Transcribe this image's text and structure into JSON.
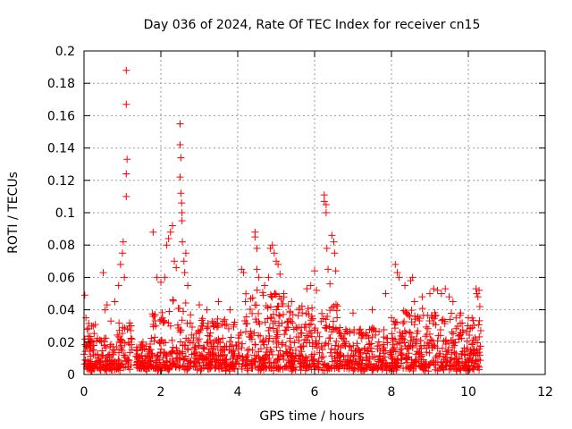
{
  "chart_data": {
    "type": "scatter",
    "title": "Day 036 of 2024, Rate Of TEC Index for receiver cn15",
    "xlabel": "GPS time / hours",
    "ylabel": "ROTI / TECUs",
    "xlim": [
      0,
      12
    ],
    "ylim": [
      0,
      0.2
    ],
    "x_ticks": [
      0,
      2,
      4,
      6,
      8,
      10,
      12
    ],
    "x_tick_labels": [
      "0",
      "2",
      "4",
      "6",
      "8",
      "10",
      "12"
    ],
    "y_ticks": [
      0,
      0.02,
      0.04,
      0.06,
      0.08,
      0.1,
      0.12,
      0.14,
      0.16,
      0.18,
      0.2
    ],
    "y_tick_labels": [
      "0",
      "0.02",
      "0.04",
      "0.06",
      "0.08",
      "0.1",
      "0.12",
      "0.14",
      "0.16",
      "0.18",
      "0.2"
    ],
    "grid": true,
    "marker": "+",
    "color": "#ff0000",
    "series": [
      {
        "name": "ROTI",
        "points": [
          [
            0.02,
            0.049
          ],
          [
            0.05,
            0.035
          ],
          [
            0.08,
            0.028
          ],
          [
            0.12,
            0.022
          ],
          [
            0.15,
            0.018
          ],
          [
            0.2,
            0.03
          ],
          [
            0.25,
            0.015
          ],
          [
            0.3,
            0.012
          ],
          [
            0.5,
            0.063
          ],
          [
            0.55,
            0.04
          ],
          [
            0.6,
            0.043
          ],
          [
            0.7,
            0.033
          ],
          [
            0.8,
            0.045
          ],
          [
            0.9,
            0.055
          ],
          [
            0.95,
            0.068
          ],
          [
            1.0,
            0.075
          ],
          [
            1.02,
            0.082
          ],
          [
            1.05,
            0.06
          ],
          [
            1.1,
            0.188
          ],
          [
            1.1,
            0.167
          ],
          [
            1.12,
            0.133
          ],
          [
            1.1,
            0.124
          ],
          [
            1.1,
            0.11
          ],
          [
            1.8,
            0.088
          ],
          [
            1.9,
            0.06
          ],
          [
            2.0,
            0.057
          ],
          [
            2.1,
            0.06
          ],
          [
            2.15,
            0.08
          ],
          [
            2.2,
            0.084
          ],
          [
            2.25,
            0.088
          ],
          [
            2.3,
            0.092
          ],
          [
            2.35,
            0.07
          ],
          [
            2.4,
            0.066
          ],
          [
            2.5,
            0.155
          ],
          [
            2.5,
            0.142
          ],
          [
            2.52,
            0.134
          ],
          [
            2.5,
            0.122
          ],
          [
            2.52,
            0.112
          ],
          [
            2.54,
            0.106
          ],
          [
            2.55,
            0.1
          ],
          [
            2.55,
            0.095
          ],
          [
            2.56,
            0.082
          ],
          [
            2.6,
            0.07
          ],
          [
            2.62,
            0.063
          ],
          [
            2.65,
            0.075
          ],
          [
            2.7,
            0.055
          ],
          [
            3.0,
            0.043
          ],
          [
            3.2,
            0.04
          ],
          [
            3.5,
            0.045
          ],
          [
            3.8,
            0.04
          ],
          [
            4.1,
            0.065
          ],
          [
            4.15,
            0.063
          ],
          [
            4.2,
            0.045
          ],
          [
            4.45,
            0.088
          ],
          [
            4.45,
            0.085
          ],
          [
            4.5,
            0.078
          ],
          [
            4.5,
            0.065
          ],
          [
            4.55,
            0.06
          ],
          [
            4.7,
            0.055
          ],
          [
            4.8,
            0.06
          ],
          [
            4.85,
            0.078
          ],
          [
            4.9,
            0.08
          ],
          [
            4.95,
            0.075
          ],
          [
            5.0,
            0.07
          ],
          [
            5.05,
            0.068
          ],
          [
            5.1,
            0.062
          ],
          [
            5.2,
            0.05
          ],
          [
            5.4,
            0.045
          ],
          [
            5.6,
            0.04
          ],
          [
            5.8,
            0.053
          ],
          [
            5.9,
            0.055
          ],
          [
            6.0,
            0.064
          ],
          [
            6.05,
            0.052
          ],
          [
            6.25,
            0.111
          ],
          [
            6.25,
            0.107
          ],
          [
            6.3,
            0.105
          ],
          [
            6.3,
            0.1
          ],
          [
            6.32,
            0.078
          ],
          [
            6.35,
            0.065
          ],
          [
            6.4,
            0.056
          ],
          [
            6.45,
            0.086
          ],
          [
            6.5,
            0.082
          ],
          [
            6.52,
            0.075
          ],
          [
            6.55,
            0.064
          ],
          [
            7.0,
            0.038
          ],
          [
            7.5,
            0.04
          ],
          [
            7.85,
            0.05
          ],
          [
            8.0,
            0.035
          ],
          [
            8.1,
            0.068
          ],
          [
            8.15,
            0.063
          ],
          [
            8.2,
            0.06
          ],
          [
            8.35,
            0.055
          ],
          [
            8.5,
            0.058
          ],
          [
            8.55,
            0.06
          ],
          [
            8.6,
            0.045
          ],
          [
            8.8,
            0.048
          ],
          [
            9.0,
            0.05
          ],
          [
            9.1,
            0.053
          ],
          [
            9.2,
            0.052
          ],
          [
            9.3,
            0.05
          ],
          [
            9.4,
            0.053
          ],
          [
            9.5,
            0.048
          ],
          [
            9.6,
            0.045
          ],
          [
            9.8,
            0.038
          ],
          [
            10.0,
            0.035
          ],
          [
            10.2,
            0.053
          ],
          [
            10.22,
            0.05
          ],
          [
            10.25,
            0.048
          ],
          [
            10.28,
            0.052
          ],
          [
            10.3,
            0.042
          ]
        ]
      }
    ]
  }
}
